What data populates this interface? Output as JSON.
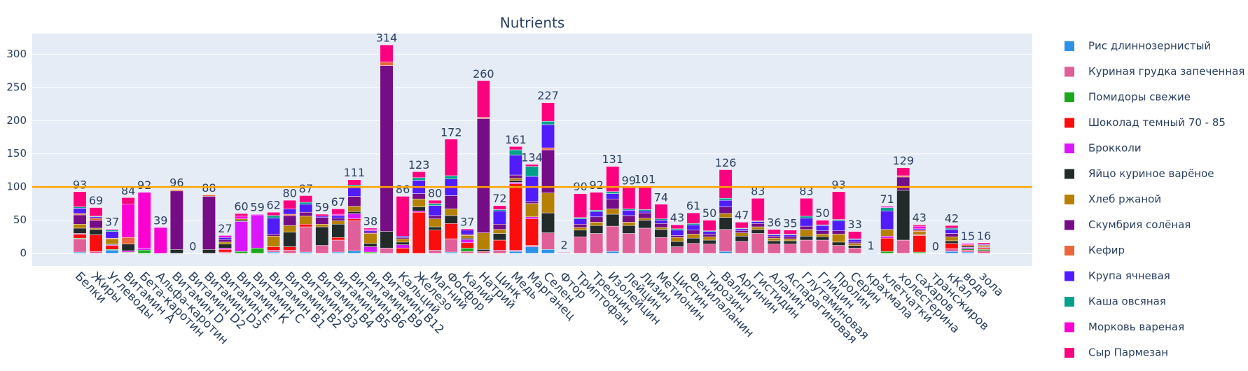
{
  "chart_data": {
    "type": "stacked_bar",
    "title": "Nutrients",
    "categories": [
      "Белки",
      "Жиры",
      "Углеводы",
      "Витамин А",
      "Бета-каротин",
      "Альфа-каротин",
      "Витамин D",
      "Витамин D2",
      "Витамин D3",
      "Витамин Е",
      "Витамин К",
      "Витамин С",
      "Витамин В1",
      "Витамин В2",
      "Витамин В3",
      "Витамин В4",
      "Витамин В5",
      "Витамин В6",
      "Витамин В9",
      "Витамин В12",
      "Кальций",
      "Железо",
      "Магний",
      "Фосфор",
      "Калий",
      "Натрий",
      "Цинк",
      "Медь",
      "Марганец",
      "Селен",
      "Фтор",
      "Триптофан",
      "Треонин",
      "Изолейцин",
      "Лейцин",
      "Лизин",
      "Метионин",
      "Цистин",
      "Фенилаланин",
      "Тирозин",
      "Валин",
      "Аргинин",
      "Гистидин",
      "Аланин",
      "Аспарагиновая",
      "Глутаминовая",
      "Глицин",
      "Пролин",
      "Серин",
      "крахмала",
      "клетчатки",
      "холестерина",
      "сахаров",
      "трансжиров",
      "кКал",
      "вода",
      "зола"
    ],
    "series": [
      {
        "name": "Рис длиннозернистый",
        "color": "#2E91E5",
        "values": [
          2,
          0,
          5,
          0,
          0,
          0,
          0,
          0,
          0,
          0,
          0,
          0,
          2,
          0,
          2,
          0,
          2,
          4,
          0,
          0,
          0,
          0,
          0,
          2,
          0,
          0,
          0,
          3,
          10,
          6,
          1,
          0,
          0,
          3,
          0,
          0,
          0,
          0,
          0,
          0,
          3,
          0,
          0,
          0,
          0,
          0,
          0,
          0,
          0,
          1,
          0,
          0,
          0,
          0,
          3,
          2,
          0
        ]
      },
      {
        "name": "Куриная грудка запеченная",
        "color": "#E15F99",
        "values": [
          20,
          3,
          0,
          1,
          0,
          0,
          0,
          0,
          0,
          2,
          0,
          0,
          3,
          5,
          38,
          12,
          18,
          45,
          0,
          8,
          0,
          0,
          5,
          20,
          3,
          3,
          5,
          2,
          2,
          25,
          1,
          25,
          30,
          38,
          30,
          38,
          24,
          10,
          15,
          14,
          33,
          18,
          30,
          14,
          14,
          20,
          20,
          12,
          8,
          0,
          0,
          20,
          0,
          0,
          4,
          3,
          4
        ]
      },
      {
        "name": "Помидоры свежие",
        "color": "#1CA71C",
        "values": [
          1,
          0,
          1,
          1,
          5,
          0,
          0,
          0,
          0,
          0,
          3,
          8,
          0,
          0,
          0,
          0,
          0,
          0,
          2,
          0,
          0,
          0,
          0,
          0,
          5,
          0,
          0,
          0,
          0,
          0,
          0,
          0,
          0,
          0,
          0,
          0,
          0,
          0,
          0,
          0,
          0,
          0,
          0,
          0,
          0,
          0,
          0,
          0,
          0,
          0,
          3,
          0,
          2,
          0,
          0,
          2,
          2
        ]
      },
      {
        "name": "Шоколад темный 70 - 85",
        "color": "#FB0D0D",
        "values": [
          6,
          25,
          6,
          0,
          0,
          0,
          0,
          0,
          0,
          4,
          0,
          0,
          5,
          5,
          4,
          0,
          4,
          3,
          0,
          0,
          8,
          62,
          30,
          23,
          8,
          0,
          15,
          100,
          40,
          0,
          0,
          0,
          0,
          0,
          0,
          0,
          0,
          0,
          0,
          0,
          0,
          0,
          0,
          0,
          0,
          0,
          0,
          0,
          0,
          0,
          20,
          0,
          25,
          0,
          8,
          0,
          2
        ]
      },
      {
        "name": "Брокколи",
        "color": "#DA16FF",
        "values": [
          1,
          0,
          1,
          2,
          3,
          0,
          0,
          0,
          0,
          2,
          45,
          50,
          0,
          0,
          0,
          0,
          0,
          8,
          8,
          0,
          5,
          2,
          0,
          0,
          5,
          0,
          0,
          2,
          3,
          0,
          0,
          0,
          0,
          0,
          0,
          0,
          0,
          0,
          0,
          0,
          0,
          0,
          0,
          0,
          0,
          0,
          0,
          0,
          0,
          0,
          3,
          0,
          1,
          0,
          0,
          2,
          1
        ]
      },
      {
        "name": "Яйцо куриное варёное",
        "color": "#222A2A",
        "values": [
          8,
          8,
          1,
          10,
          0,
          0,
          6,
          0,
          6,
          6,
          2,
          0,
          0,
          22,
          0,
          28,
          20,
          3,
          5,
          25,
          4,
          6,
          5,
          12,
          2,
          3,
          10,
          3,
          0,
          30,
          0,
          10,
          12,
          18,
          12,
          12,
          12,
          8,
          8,
          6,
          18,
          8,
          6,
          5,
          5,
          6,
          5,
          5,
          4,
          0,
          0,
          75,
          0,
          0,
          4,
          2,
          1
        ]
      },
      {
        "name": "Хлеб ржаной",
        "color": "#B68100",
        "values": [
          6,
          2,
          8,
          0,
          0,
          0,
          0,
          0,
          0,
          3,
          2,
          0,
          16,
          10,
          12,
          4,
          5,
          8,
          15,
          0,
          5,
          12,
          12,
          10,
          4,
          25,
          6,
          3,
          20,
          30,
          0,
          4,
          5,
          8,
          5,
          3,
          3,
          6,
          6,
          5,
          6,
          5,
          4,
          4,
          3,
          10,
          4,
          12,
          3,
          0,
          10,
          0,
          5,
          0,
          6,
          0,
          2
        ]
      },
      {
        "name": "Скумбрия солёная",
        "color": "#750D86",
        "values": [
          14,
          12,
          0,
          0,
          0,
          0,
          88,
          0,
          80,
          4,
          0,
          0,
          3,
          15,
          6,
          10,
          4,
          15,
          2,
          250,
          2,
          8,
          5,
          20,
          2,
          172,
          8,
          5,
          3,
          65,
          0,
          5,
          8,
          15,
          10,
          8,
          6,
          3,
          6,
          4,
          10,
          3,
          5,
          3,
          3,
          5,
          5,
          5,
          2,
          0,
          0,
          20,
          0,
          0,
          5,
          0,
          1
        ]
      },
      {
        "name": "Кефир",
        "color": "#EB663B",
        "values": [
          2,
          3,
          1,
          10,
          0,
          0,
          2,
          0,
          2,
          0,
          0,
          0,
          0,
          2,
          0,
          0,
          0,
          0,
          0,
          5,
          0,
          0,
          0,
          0,
          0,
          2,
          0,
          0,
          0,
          3,
          0,
          0,
          0,
          0,
          0,
          0,
          0,
          0,
          0,
          0,
          0,
          0,
          0,
          0,
          0,
          0,
          0,
          0,
          0,
          0,
          0,
          2,
          2,
          0,
          0,
          2,
          0
        ]
      },
      {
        "name": "Крупа ячневая",
        "color": "#511CFB",
        "values": [
          8,
          2,
          10,
          0,
          0,
          0,
          0,
          0,
          0,
          3,
          0,
          0,
          24,
          8,
          12,
          2,
          4,
          14,
          2,
          0,
          2,
          20,
          15,
          25,
          6,
          0,
          20,
          30,
          38,
          35,
          0,
          8,
          8,
          8,
          8,
          3,
          5,
          8,
          8,
          4,
          10,
          3,
          3,
          2,
          3,
          12,
          8,
          15,
          4,
          0,
          28,
          0,
          2,
          0,
          6,
          0,
          1
        ]
      },
      {
        "name": "Каша овсяная",
        "color": "#00A08B",
        "values": [
          2,
          1,
          2,
          0,
          0,
          0,
          0,
          0,
          0,
          0,
          0,
          0,
          4,
          0,
          3,
          0,
          0,
          3,
          0,
          0,
          0,
          4,
          3,
          5,
          0,
          0,
          2,
          8,
          15,
          5,
          0,
          2,
          2,
          3,
          2,
          2,
          2,
          2,
          2,
          1,
          3,
          1,
          1,
          1,
          1,
          3,
          1,
          2,
          1,
          0,
          5,
          0,
          0,
          0,
          2,
          0,
          0
        ]
      },
      {
        "name": "Морковь вареная",
        "color": "#FB00D1",
        "values": [
          0,
          0,
          1,
          50,
          84,
          39,
          0,
          0,
          0,
          3,
          4,
          1,
          0,
          0,
          0,
          0,
          2,
          0,
          2,
          0,
          0,
          0,
          0,
          0,
          0,
          0,
          0,
          0,
          0,
          0,
          0,
          0,
          0,
          0,
          0,
          0,
          0,
          0,
          0,
          0,
          0,
          0,
          0,
          0,
          0,
          0,
          0,
          0,
          0,
          0,
          2,
          0,
          4,
          0,
          0,
          2,
          0
        ]
      },
      {
        "name": "Сыр Пармезан",
        "color": "#FC0080",
        "values": [
          23,
          13,
          1,
          10,
          0,
          0,
          0,
          0,
          0,
          0,
          4,
          0,
          5,
          13,
          10,
          3,
          8,
          8,
          2,
          26,
          60,
          9,
          5,
          55,
          2,
          55,
          6,
          5,
          3,
          28,
          0,
          36,
          27,
          38,
          32,
          35,
          22,
          6,
          16,
          16,
          43,
          9,
          34,
          7,
          6,
          27,
          7,
          42,
          11,
          0,
          0,
          12,
          2,
          0,
          4,
          0,
          2
        ]
      }
    ],
    "total_labels": [
      93,
      69,
      37,
      84,
      92,
      39,
      96,
      0,
      88,
      27,
      60,
      59,
      62,
      80,
      87,
      59,
      67,
      111,
      38,
      314,
      86,
      123,
      80,
      172,
      37,
      260,
      72,
      161,
      134,
      227,
      2,
      90,
      92,
      131,
      99,
      101,
      74,
      43,
      61,
      50,
      126,
      47,
      83,
      36,
      35,
      83,
      50,
      93,
      33,
      1,
      71,
      129,
      43,
      0,
      42,
      15,
      16
    ],
    "hline": {
      "value": 100,
      "color": "#FFA500"
    },
    "ylim": [
      -19,
      331
    ],
    "yticks": [
      0,
      50,
      100,
      150,
      200,
      250,
      300
    ],
    "grid": true
  }
}
